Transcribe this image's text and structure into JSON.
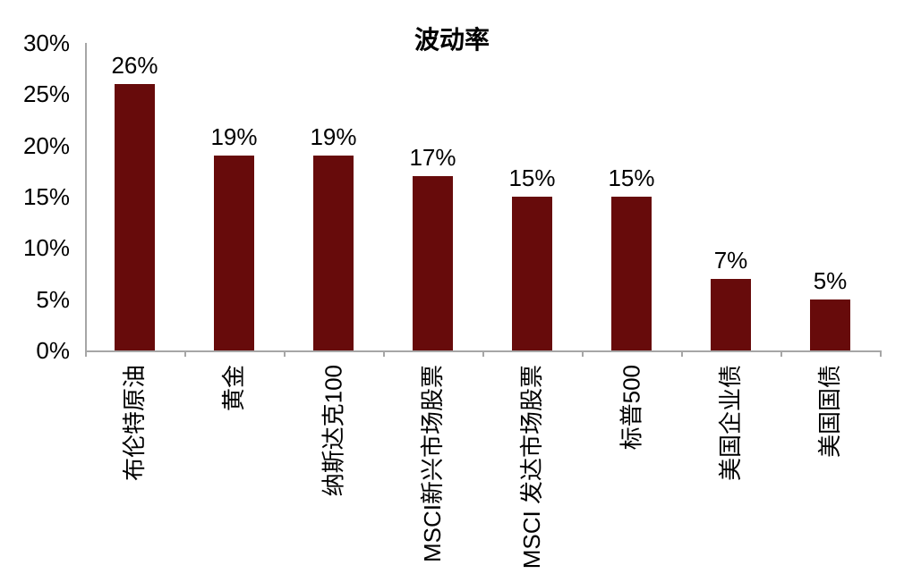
{
  "chart_data": {
    "type": "bar",
    "title": "波动率",
    "categories": [
      "布伦特原油",
      "黄金",
      "纳斯达克100",
      "MSCI新兴市场股票",
      "MSCI 发达市场股票",
      "标普500",
      "美国企业债",
      "美国国债"
    ],
    "values": [
      26,
      19,
      19,
      17,
      15,
      15,
      7,
      5
    ],
    "data_labels": [
      "26%",
      "19%",
      "19%",
      "17%",
      "15%",
      "15%",
      "7%",
      "5%"
    ],
    "ytick_values": [
      0,
      5,
      10,
      15,
      20,
      25,
      30
    ],
    "ytick_labels": [
      "0%",
      "5%",
      "10%",
      "15%",
      "20%",
      "25%",
      "30%"
    ],
    "ylim": [
      0,
      30
    ],
    "xlabel": "",
    "ylabel": "",
    "grid": "off",
    "legend": "none",
    "bar_color": "#670B0B",
    "axis_color": "#A6A6A6",
    "text_color": "#000000"
  }
}
